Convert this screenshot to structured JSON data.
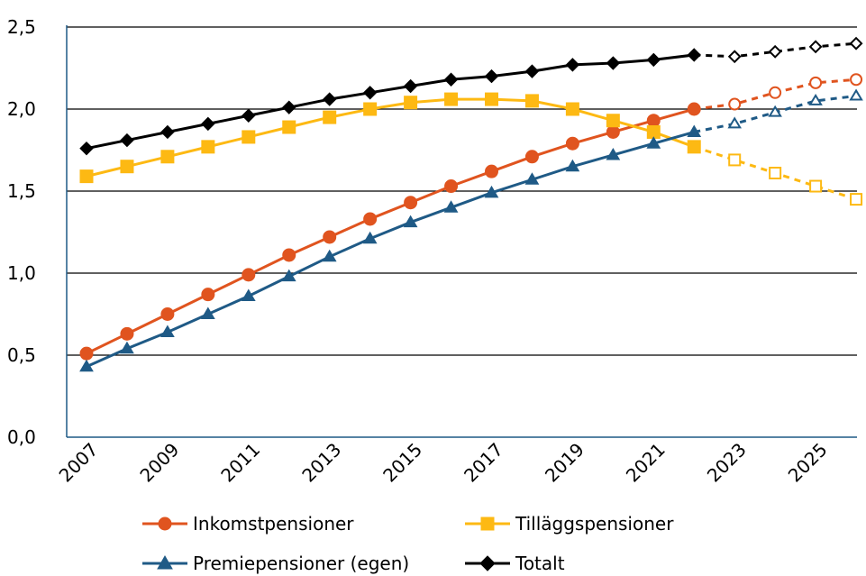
{
  "chart_data": {
    "type": "line",
    "title": "",
    "xlabel": "",
    "ylabel": "",
    "ylim": [
      0,
      2.5
    ],
    "yticks": [
      "0,0",
      "0,5",
      "1,0",
      "1,5",
      "2,0",
      "2,5"
    ],
    "x": [
      2007,
      2008,
      2009,
      2010,
      2011,
      2012,
      2013,
      2014,
      2015,
      2016,
      2017,
      2018,
      2019,
      2020,
      2021,
      2022,
      2023,
      2024,
      2025,
      2026
    ],
    "xtick_labels": [
      "2007",
      "2009",
      "2011",
      "2013",
      "2015",
      "2017",
      "2019",
      "2021",
      "2023",
      "2025"
    ],
    "grid": "horizontal",
    "legend_position": "bottom",
    "last_actual_year": 2022,
    "series": [
      {
        "name": "Inkomstpensioner",
        "color": "#E0541F",
        "marker": "circle",
        "values": [
          0.51,
          0.63,
          0.75,
          0.87,
          0.99,
          1.11,
          1.22,
          1.33,
          1.43,
          1.53,
          1.62,
          1.71,
          1.79,
          1.86,
          1.93,
          2.0,
          2.03,
          2.1,
          2.16,
          2.18
        ]
      },
      {
        "name": "Tilläggspensioner",
        "color": "#FDB913",
        "marker": "square",
        "values": [
          1.59,
          1.65,
          1.71,
          1.77,
          1.83,
          1.89,
          1.95,
          2.0,
          2.04,
          2.06,
          2.06,
          2.05,
          2.0,
          1.93,
          1.86,
          1.77,
          1.69,
          1.61,
          1.53,
          1.45
        ]
      },
      {
        "name": "Premiepensioner (egen)",
        "color": "#1F5A86",
        "marker": "triangle",
        "values": [
          0.43,
          0.54,
          0.64,
          0.75,
          0.86,
          0.98,
          1.1,
          1.21,
          1.31,
          1.4,
          1.49,
          1.57,
          1.65,
          1.72,
          1.79,
          1.86,
          1.91,
          1.98,
          2.05,
          2.08
        ]
      },
      {
        "name": "Totalt",
        "color": "#000000",
        "marker": "diamond",
        "values": [
          1.76,
          1.81,
          1.86,
          1.91,
          1.96,
          2.01,
          2.06,
          2.1,
          2.14,
          2.18,
          2.2,
          2.23,
          2.27,
          2.28,
          2.3,
          2.33,
          2.32,
          2.35,
          2.38,
          2.4
        ]
      }
    ]
  }
}
